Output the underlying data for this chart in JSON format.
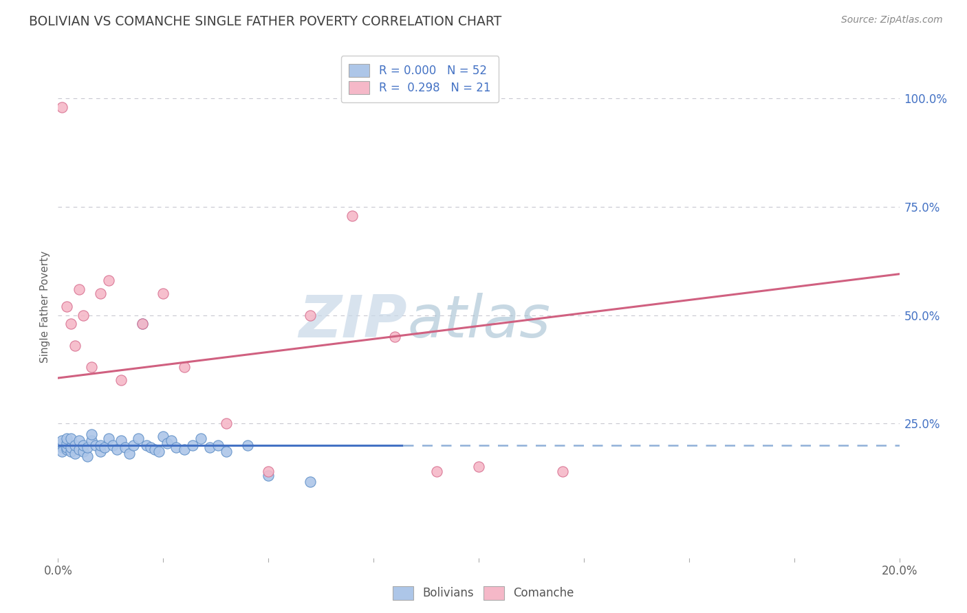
{
  "title": "BOLIVIAN VS COMANCHE SINGLE FATHER POVERTY CORRELATION CHART",
  "source": "Source: ZipAtlas.com",
  "ylabel": "Single Father Poverty",
  "right_yticks": [
    "100.0%",
    "75.0%",
    "50.0%",
    "25.0%"
  ],
  "right_ytick_vals": [
    1.0,
    0.75,
    0.5,
    0.25
  ],
  "legend_blue_label": "R = 0.000   N = 52",
  "legend_pink_label": "R =  0.298   N = 21",
  "blue_scatter_x": [
    0.001,
    0.001,
    0.001,
    0.001,
    0.001,
    0.002,
    0.002,
    0.002,
    0.002,
    0.003,
    0.003,
    0.003,
    0.004,
    0.004,
    0.005,
    0.005,
    0.006,
    0.006,
    0.007,
    0.007,
    0.008,
    0.008,
    0.009,
    0.01,
    0.01,
    0.011,
    0.012,
    0.013,
    0.014,
    0.015,
    0.016,
    0.017,
    0.018,
    0.019,
    0.02,
    0.021,
    0.022,
    0.023,
    0.024,
    0.025,
    0.026,
    0.027,
    0.028,
    0.03,
    0.032,
    0.034,
    0.036,
    0.038,
    0.04,
    0.045,
    0.05,
    0.06
  ],
  "blue_scatter_y": [
    0.195,
    0.2,
    0.205,
    0.185,
    0.21,
    0.19,
    0.195,
    0.205,
    0.215,
    0.185,
    0.195,
    0.215,
    0.18,
    0.2,
    0.19,
    0.21,
    0.185,
    0.2,
    0.175,
    0.195,
    0.21,
    0.225,
    0.2,
    0.185,
    0.2,
    0.195,
    0.215,
    0.2,
    0.19,
    0.21,
    0.195,
    0.18,
    0.2,
    0.215,
    0.48,
    0.2,
    0.195,
    0.19,
    0.185,
    0.22,
    0.205,
    0.21,
    0.195,
    0.19,
    0.2,
    0.215,
    0.195,
    0.2,
    0.185,
    0.2,
    0.13,
    0.115
  ],
  "pink_scatter_x": [
    0.001,
    0.002,
    0.003,
    0.004,
    0.005,
    0.006,
    0.008,
    0.01,
    0.012,
    0.015,
    0.02,
    0.025,
    0.03,
    0.04,
    0.05,
    0.06,
    0.07,
    0.08,
    0.09,
    0.1,
    0.12
  ],
  "pink_scatter_y": [
    0.98,
    0.52,
    0.48,
    0.43,
    0.56,
    0.5,
    0.38,
    0.55,
    0.58,
    0.35,
    0.48,
    0.55,
    0.38,
    0.25,
    0.14,
    0.5,
    0.73,
    0.45,
    0.14,
    0.15,
    0.14
  ],
  "blue_solid_line_x": [
    0.0,
    0.082
  ],
  "blue_solid_line_y": [
    0.2,
    0.2
  ],
  "blue_dash_line_x": [
    0.082,
    0.2
  ],
  "blue_dash_line_y": [
    0.2,
    0.2
  ],
  "pink_line_x": [
    0.0,
    0.2
  ],
  "pink_line_y": [
    0.355,
    0.595
  ],
  "blue_scatter_color": "#adc6e8",
  "blue_scatter_edge": "#6090c8",
  "pink_scatter_color": "#f5b8c8",
  "pink_scatter_edge": "#d87090",
  "blue_line_color": "#4472c4",
  "pink_line_color": "#d06080",
  "dash_line_color": "#90b0d8",
  "grid_color": "#c8c8d0",
  "title_color": "#404040",
  "right_tick_color": "#4472c4",
  "axis_label_color": "#606060",
  "background_color": "#ffffff",
  "watermark_zip_color": "#c8d8e8",
  "watermark_atlas_color": "#9ab8cc",
  "legend_text_color": "#4472c4",
  "legend_r_color": "#333333",
  "bottom_legend_color": "#555555",
  "xlim": [
    0.0,
    0.2
  ],
  "ylim": [
    -0.06,
    1.1
  ],
  "x_tick_positions": [
    0.0,
    0.025,
    0.05,
    0.075,
    0.1,
    0.125,
    0.15,
    0.175,
    0.2
  ],
  "x_tick_labels": [
    "0.0%",
    "",
    "",
    "",
    "",
    "",
    "",
    "",
    "20.0%"
  ]
}
